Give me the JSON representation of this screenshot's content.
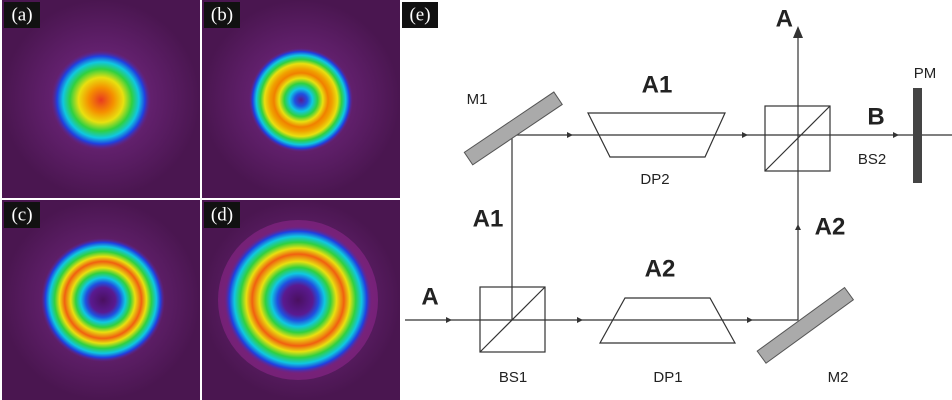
{
  "panels": {
    "a": "(a)",
    "b": "(b)",
    "c": "(c)",
    "d": "(d)",
    "e": "(e)"
  },
  "diagram": {
    "input": "A",
    "output_top": "A",
    "output_right": "B",
    "detector": "PM",
    "mirror_1": "M1",
    "mirror_2": "M2",
    "splitter_1": "BS1",
    "splitter_2": "BS2",
    "prism_1": "DP1",
    "prism_2": "DP2",
    "arm_top": "A1",
    "arm_bottom": "A2",
    "arm_left": "A1",
    "arm_right": "A2"
  }
}
